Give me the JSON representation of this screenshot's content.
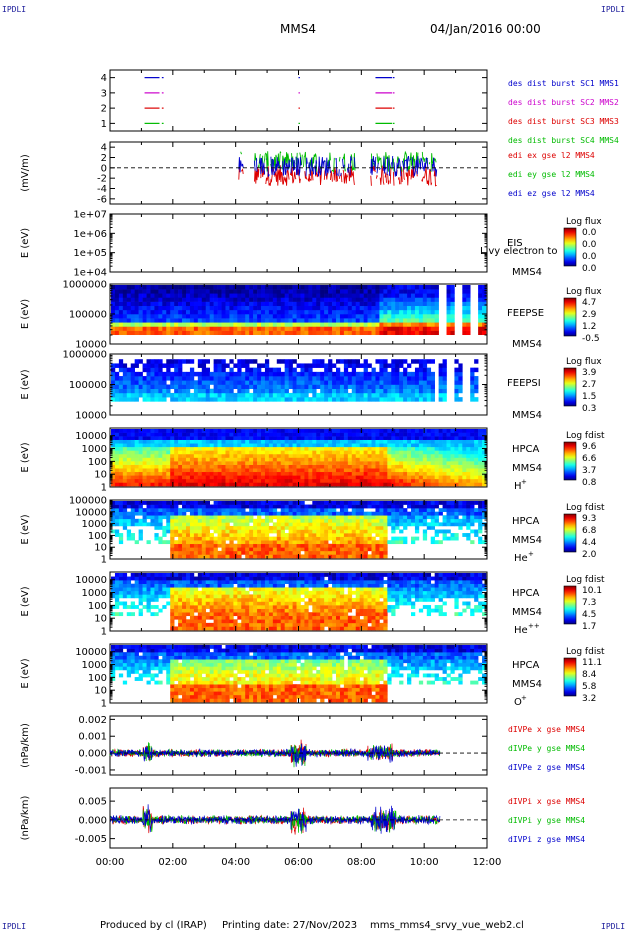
{
  "corner_label": "IPDLI",
  "header": {
    "spacecraft": "MMS4",
    "date": "04/Jan/2016 00:00"
  },
  "footer": {
    "produced_by": "Produced by cl (IRAP)",
    "printing_date": "Printing date: 27/Nov/2023",
    "filename": "mms_mms4_srvy_vue_web2.cl"
  },
  "colors": {
    "red": "#dd0000",
    "green": "#00bb00",
    "blue": "#0000cc",
    "magenta": "#cc00cc"
  },
  "chart_data": [
    {
      "type": "line",
      "panel": "burst-availability",
      "yticks": [
        "1",
        "2",
        "3",
        "4"
      ],
      "ylim": [
        0.5,
        4.5
      ],
      "series": [
        {
          "name": "des dist burst SC1 MMS1",
          "color": "#0000cc",
          "level": 4,
          "intervals": [
            [
              1.1,
              1.55
            ],
            [
              1.65,
              1.68
            ],
            [
              6.0,
              6.02
            ],
            [
              8.45,
              8.95
            ],
            [
              9.0,
              9.03
            ]
          ]
        },
        {
          "name": "des dist burst SC2 MMS2",
          "color": "#cc00cc",
          "level": 3,
          "intervals": [
            [
              1.1,
              1.55
            ],
            [
              1.65,
              1.68
            ],
            [
              6.0,
              6.02
            ],
            [
              8.45,
              8.95
            ],
            [
              9.0,
              9.03
            ]
          ]
        },
        {
          "name": "des dist burst SC3 MMS3",
          "color": "#dd0000",
          "level": 2,
          "intervals": [
            [
              1.1,
              1.55
            ],
            [
              1.65,
              1.68
            ],
            [
              6.0,
              6.02
            ],
            [
              8.45,
              8.95
            ],
            [
              9.0,
              9.03
            ]
          ]
        },
        {
          "name": "des dist burst SC4 MMS4",
          "color": "#00bb00",
          "level": 1,
          "intervals": [
            [
              1.1,
              1.55
            ],
            [
              1.65,
              1.68
            ],
            [
              6.0,
              6.02
            ],
            [
              8.45,
              8.95
            ],
            [
              9.0,
              9.03
            ]
          ]
        }
      ]
    },
    {
      "type": "line",
      "panel": "edi-efield",
      "ylabel": "(mV/m)",
      "yticks": [
        "4",
        "2",
        "0",
        "-2",
        "-4",
        "-6"
      ],
      "ylim": [
        -7,
        5
      ],
      "series": [
        {
          "name": "edi ex gse l2 MMS4",
          "color": "#dd0000"
        },
        {
          "name": "edi ey gse l2 MMS4",
          "color": "#00bb00"
        },
        {
          "name": "edi ez gse l2 MMS4",
          "color": "#0000cc"
        }
      ],
      "active_intervals": [
        [
          4.1,
          4.25
        ],
        [
          4.6,
          7.8
        ],
        [
          8.3,
          10.4
        ]
      ]
    },
    {
      "type": "heatmap",
      "panel": "eis",
      "ylabel": "E (eV)",
      "yticks": [
        "1e+07",
        "1e+06",
        "1e+05",
        "1e+04"
      ],
      "ylim": [
        10000,
        10000000
      ],
      "instrument": "EIS",
      "spacecraft": "MMS4",
      "overlap_text": "Livy electron to",
      "colorbar_title": "Log flux",
      "colorbar_ticks": [
        "0.0",
        "0.0",
        "0.0",
        "0.0"
      ],
      "empty": true
    },
    {
      "type": "heatmap",
      "panel": "feepse",
      "ylabel": "E (eV)",
      "yticks": [
        "1000000",
        "100000",
        "10000"
      ],
      "ylim": [
        10000,
        1000000
      ],
      "instrument": "FEEPSE",
      "spacecraft": "MMS4",
      "colorbar_title": "Log flux",
      "colorbar_ticks": [
        "4.7",
        "2.9",
        "1.2",
        "-0.5"
      ]
    },
    {
      "type": "heatmap",
      "panel": "feepsi",
      "ylabel": "E (eV)",
      "yticks": [
        "1000000",
        "100000",
        "10000"
      ],
      "ylim": [
        10000,
        1000000
      ],
      "instrument": "FEEPSI",
      "spacecraft": "MMS4",
      "colorbar_title": "Log flux",
      "colorbar_ticks": [
        "3.9",
        "2.7",
        "1.5",
        "0.3"
      ]
    },
    {
      "type": "heatmap",
      "panel": "hpca-h",
      "ylabel": "E (eV)",
      "yticks": [
        "10000",
        "1000",
        "100",
        "10",
        "1"
      ],
      "ylim": [
        1,
        40000
      ],
      "instrument": "HPCA",
      "spacecraft": "MMS4",
      "species": "H",
      "species_charge": "+",
      "colorbar_title": "Log fdist",
      "colorbar_ticks": [
        "9.6",
        "6.6",
        "3.7",
        "0.8"
      ]
    },
    {
      "type": "heatmap",
      "panel": "hpca-he",
      "ylabel": "E (eV)",
      "yticks": [
        "100000",
        "10000",
        "1000",
        "100",
        "10",
        "1"
      ],
      "ylim": [
        1,
        100000
      ],
      "instrument": "HPCA",
      "spacecraft": "MMS4",
      "species": "He",
      "species_charge": "+",
      "colorbar_title": "Log fdist",
      "colorbar_ticks": [
        "9.3",
        "6.8",
        "4.4",
        "2.0"
      ]
    },
    {
      "type": "heatmap",
      "panel": "hpca-hepp",
      "ylabel": "E (eV)",
      "yticks": [
        "10000",
        "1000",
        "100",
        "10",
        "1"
      ],
      "ylim": [
        1,
        40000
      ],
      "instrument": "HPCA",
      "spacecraft": "MMS4",
      "species": "He",
      "species_charge": "++",
      "colorbar_title": "Log fdist",
      "colorbar_ticks": [
        "10.1",
        "7.3",
        "4.5",
        "1.7"
      ]
    },
    {
      "type": "heatmap",
      "panel": "hpca-o",
      "ylabel": "E (eV)",
      "yticks": [
        "10000",
        "1000",
        "100",
        "10",
        "1"
      ],
      "ylim": [
        1,
        40000
      ],
      "instrument": "HPCA",
      "spacecraft": "MMS4",
      "species": "O",
      "species_charge": "+",
      "colorbar_title": "Log fdist",
      "colorbar_ticks": [
        "11.1",
        "8.4",
        "5.8",
        "3.2"
      ]
    },
    {
      "type": "line",
      "panel": "divpe",
      "ylabel": "(nPa/km)",
      "yticks": [
        "0.002",
        "0.001",
        "0.000",
        "-0.001"
      ],
      "ylim": [
        -0.0013,
        0.0022
      ],
      "series": [
        {
          "name": "dIVPe x gse MMS4",
          "color": "#dd0000"
        },
        {
          "name": "dIVPe y gse MMS4",
          "color": "#00bb00"
        },
        {
          "name": "dIVPe z gse MMS4",
          "color": "#0000cc"
        }
      ]
    },
    {
      "type": "line",
      "panel": "divpi",
      "ylabel": "(nPa/km)",
      "yticks": [
        "0.005",
        "0.000",
        "-0.005"
      ],
      "ylim": [
        -0.0075,
        0.0085
      ],
      "series": [
        {
          "name": "dIVPi x gse MMS4",
          "color": "#dd0000"
        },
        {
          "name": "dIVPi y gse MMS4",
          "color": "#00bb00"
        },
        {
          "name": "dIVPi z gse MMS4",
          "color": "#0000cc"
        }
      ]
    }
  ],
  "time_axis": {
    "ticks": [
      "00:00",
      "02:00",
      "04:00",
      "06:00",
      "08:00",
      "10:00",
      "12:00"
    ],
    "range_hours": [
      0,
      12
    ]
  }
}
